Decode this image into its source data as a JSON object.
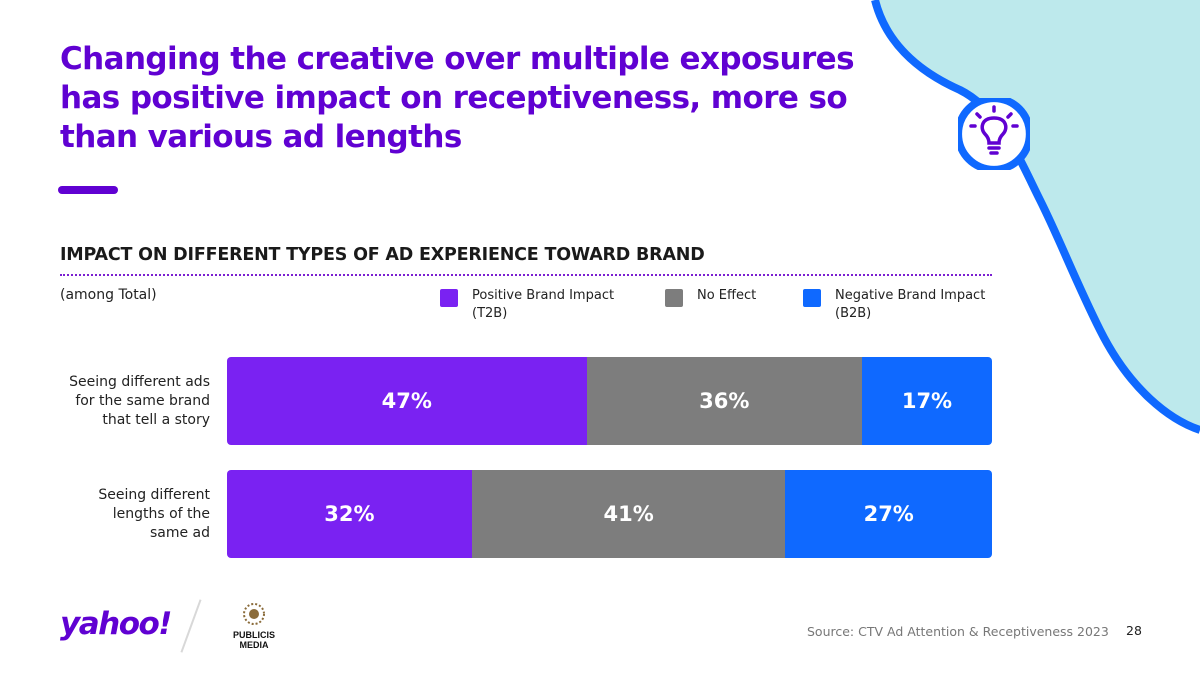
{
  "headline": {
    "lines": [
      "Changing the creative over multiple exposures",
      "has positive impact on receptiveness, more so",
      "than various ad lengths"
    ]
  },
  "section_title": "IMPACT ON DIFFERENT TYPES OF AD EXPERIENCE TOWARD BRAND",
  "base_note": "(among Total)",
  "legend": [
    {
      "lines": [
        "Positive Brand Impact",
        "(T2B)"
      ],
      "color": "#7a22f2"
    },
    {
      "lines": [
        "No Effect"
      ],
      "color": "#7d7d7d"
    },
    {
      "lines": [
        "Negative Brand Impact",
        "(B2B)"
      ],
      "color": "#0f69ff"
    }
  ],
  "chart_data": {
    "type": "bar",
    "orientation": "horizontal",
    "stacked": true,
    "percent_stacked": true,
    "title": "IMPACT ON DIFFERENT TYPES OF AD EXPERIENCE TOWARD BRAND",
    "subtitle": "(among Total)",
    "categories": [
      [
        "Seeing different ads",
        "for the same brand",
        "that tell a story"
      ],
      [
        "Seeing different",
        "lengths of the",
        "same ad"
      ]
    ],
    "series": [
      {
        "name": "Positive Brand Impact (T2B)",
        "values": [
          47,
          32
        ],
        "labels": [
          "47%",
          "32%"
        ],
        "color": "#7a22f2"
      },
      {
        "name": "No Effect",
        "values": [
          36,
          41
        ],
        "labels": [
          "36%",
          "41%"
        ],
        "color": "#7d7d7d"
      },
      {
        "name": "Negative Brand Impact (B2B)",
        "values": [
          17,
          27
        ],
        "labels": [
          "17%",
          "27%"
        ],
        "color": "#0f69ff"
      }
    ],
    "xlim": [
      0,
      100
    ],
    "grid": false,
    "legend_position": "top"
  },
  "footer": {
    "logo_text": "yahoo!",
    "partner_lines": [
      "PUBLICIS",
      "MEDIA"
    ],
    "source": "Source: CTV Ad Attention & Receptiveness 2023",
    "page_number": "28"
  },
  "colors": {
    "purple": "#6001d2",
    "accent_blob": "#bde9ec",
    "accent_blue": "#0f69ff"
  }
}
